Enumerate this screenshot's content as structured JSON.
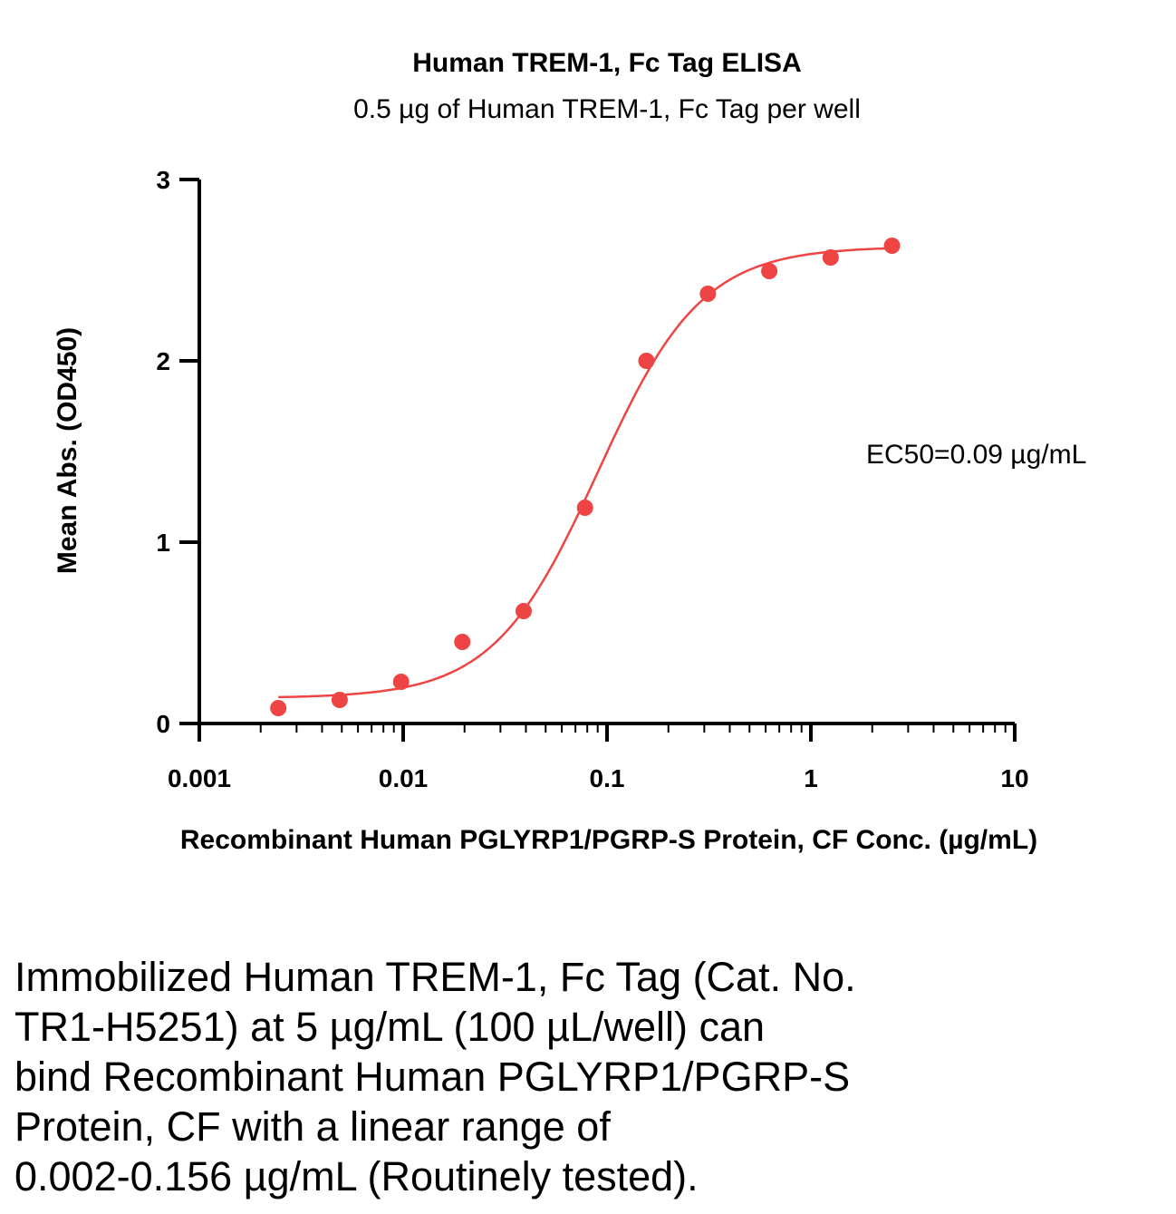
{
  "chart_data": {
    "type": "scatter",
    "title": "Human TREM-1, Fc Tag ELISA",
    "subtitle": "0.5 µg of Human TREM-1, Fc Tag per well",
    "xlabel": "Recombinant Human PGLYRP1/PGRP-S Protein, CF Conc. (µg/mL)",
    "ylabel": "Mean Abs. (OD450)",
    "xscale": "log",
    "xlim": [
      0.001,
      10
    ],
    "ylim": [
      0,
      3
    ],
    "xticks": [
      "0.001",
      "0.01",
      "0.1",
      "1",
      "10"
    ],
    "xtick_values": [
      0.001,
      0.01,
      0.1,
      1,
      10
    ],
    "yticks": [
      "0",
      "1",
      "2",
      "3"
    ],
    "ytick_values": [
      0,
      1,
      2,
      3
    ],
    "grid": false,
    "series": [
      {
        "name": "Mean Abs.",
        "color": "#ef4444",
        "x": [
          0.00244,
          0.00488,
          0.00977,
          0.0195,
          0.039,
          0.078,
          0.156,
          0.3125,
          0.625,
          1.25,
          2.5
        ],
        "y": [
          0.085,
          0.13,
          0.23,
          0.45,
          0.62,
          1.19,
          2.0,
          2.37,
          2.495,
          2.57,
          2.635
        ]
      }
    ],
    "fit": {
      "type": "4PL",
      "bottom": 0.14,
      "top": 2.63,
      "ec50": 0.09,
      "hill": 1.7,
      "x_range": [
        0.00244,
        2.5
      ],
      "color": "#ef4444"
    },
    "annotation": "EC50=0.09 µg/mL"
  },
  "caption": [
    "Immobilized Human TREM-1, Fc Tag (Cat. No.",
    "TR1-H5251) at 5 µg/mL (100 µL/well) can",
    "bind Recombinant Human PGLYRP1/PGRP-S",
    "Protein, CF with a linear range of",
    "0.002-0.156 µg/mL (Routinely tested)."
  ]
}
